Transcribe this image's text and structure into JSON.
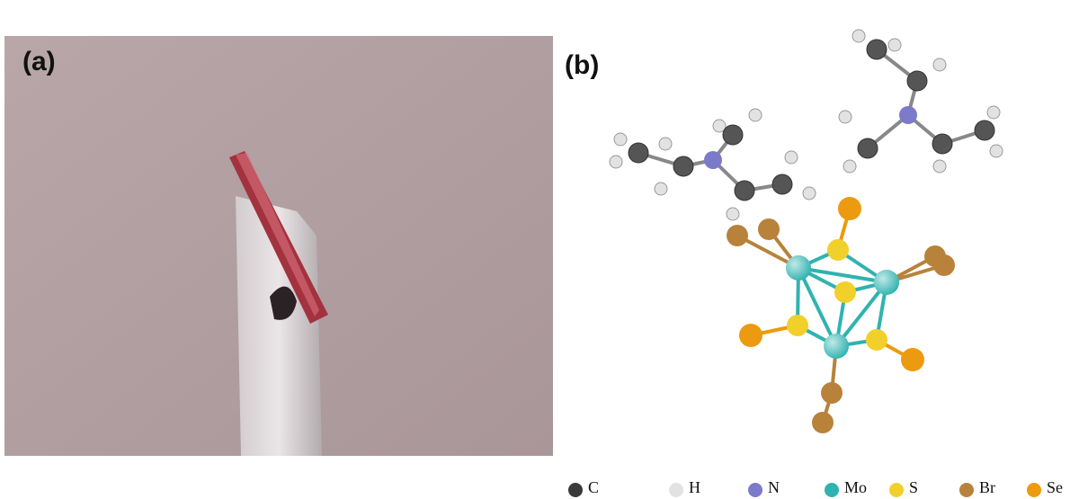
{
  "panels": [
    {
      "label": "(a)"
    },
    {
      "label": "(b)"
    }
  ],
  "legend": [
    {
      "label": "C",
      "color": "#3a3a3a"
    },
    {
      "label": "H",
      "color": "#e2e2e2"
    },
    {
      "label": "N",
      "color": "#7b7bc9"
    },
    {
      "label": "Mo",
      "color": "#2fb3b0"
    },
    {
      "label": "S",
      "color": "#f1d02c"
    },
    {
      "label": "Br",
      "color": "#b8823a"
    },
    {
      "label": "Se",
      "color": "#ec9a0f"
    }
  ]
}
